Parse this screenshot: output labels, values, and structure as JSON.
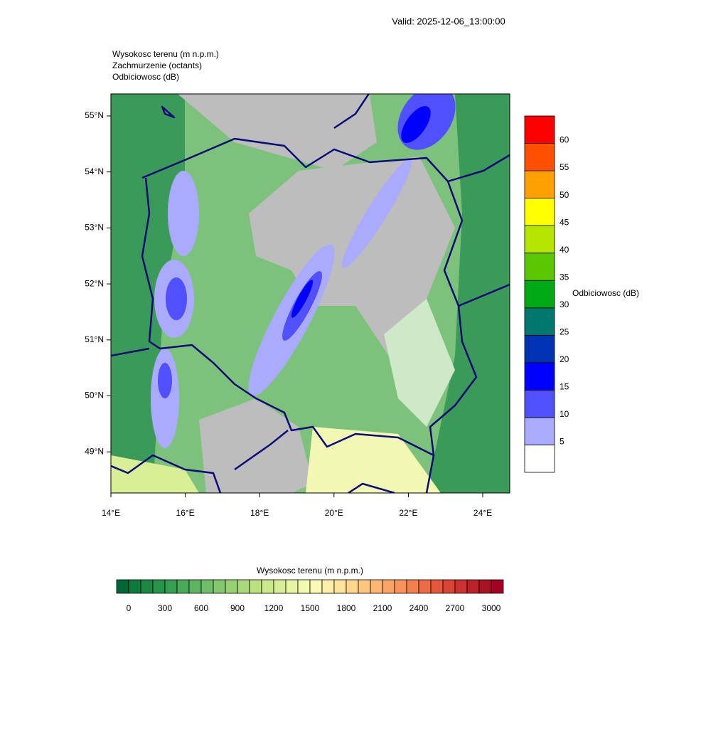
{
  "valid": "Valid: 2025-12-06_13:00:00",
  "header": [
    "Wysokosc terenu   (m n.p.m.)",
    "Zachmurzenie   (octants)",
    "Odbiciowosc   (dB)"
  ],
  "lat_labels": [
    "55°N",
    "54°N",
    "53°N",
    "52°N",
    "51°N",
    "50°N",
    "49°N"
  ],
  "lon_labels": [
    "14°E",
    "16°E",
    "18°E",
    "20°E",
    "22°E",
    "24°E"
  ],
  "reflectivity_bar": {
    "title": "Odbiciowosc  (dB)",
    "labels": [
      5,
      10,
      15,
      20,
      25,
      30,
      35,
      40,
      45,
      50,
      55,
      60
    ],
    "colors": [
      "#ffffff",
      "#aaaaff",
      "#5050ff",
      "#0000ff",
      "#0032b4",
      "#00786e",
      "#00aa14",
      "#5ac800",
      "#b4e600",
      "#ffff00",
      "#ffa000",
      "#ff5000",
      "#ff0000"
    ]
  },
  "terrain_bar": {
    "title": "Wysokosc terenu  (m n.p.m.)",
    "labels": [
      0,
      300,
      600,
      900,
      1200,
      1500,
      1800,
      2100,
      2400,
      2700,
      3000
    ],
    "colors": [
      "#006837",
      "#0e7a3e",
      "#1a8744",
      "#27934b",
      "#36a050",
      "#49ab58",
      "#5db561",
      "#70bf68",
      "#83c86d",
      "#96d172",
      "#a9d978",
      "#bce180",
      "#cbe88a",
      "#d9ef95",
      "#e6f5a1",
      "#f2faae",
      "#fbfab5",
      "#fef0a8",
      "#fee39a",
      "#fed68c",
      "#fdc77e",
      "#fdb672",
      "#fca465",
      "#f9935a",
      "#f47f4f",
      "#ee6c45",
      "#e5583c",
      "#da4435",
      "#cc312e",
      "#bb2127",
      "#a71322",
      "#a50026"
    ]
  }
}
